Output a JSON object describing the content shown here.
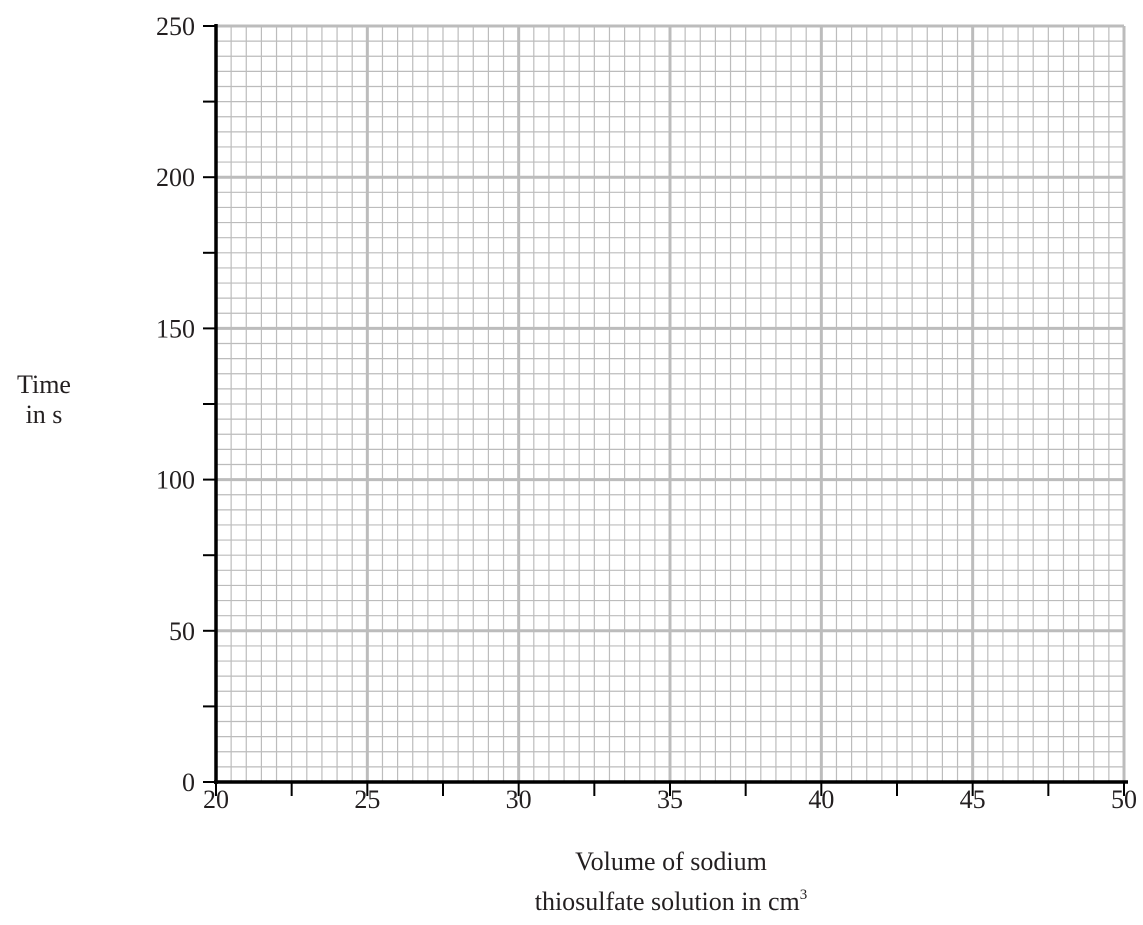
{
  "chart_data": {
    "type": "scatter",
    "title": "",
    "xlabel_line1": "Volume of sodium",
    "xlabel_line2": "thiosulfate solution in cm",
    "xlabel_superscript": "3",
    "ylabel_line1": "Time",
    "ylabel_line2": "in s",
    "xlim": [
      20,
      50
    ],
    "ylim": [
      0,
      250
    ],
    "x_ticks": [
      "20",
      "25",
      "30",
      "35",
      "40",
      "45",
      "50"
    ],
    "y_ticks": [
      "0",
      "50",
      "100",
      "150",
      "200",
      "250"
    ],
    "x_major_step": 5,
    "x_minor_step": 2.5,
    "x_grid_step": 0.5,
    "y_major_step": 50,
    "y_minor_step": 25,
    "y_grid_step": 5,
    "grid": true,
    "series": []
  },
  "colors": {
    "grid": "#bcbcbc",
    "axis": "#000000",
    "text": "#231f20"
  }
}
